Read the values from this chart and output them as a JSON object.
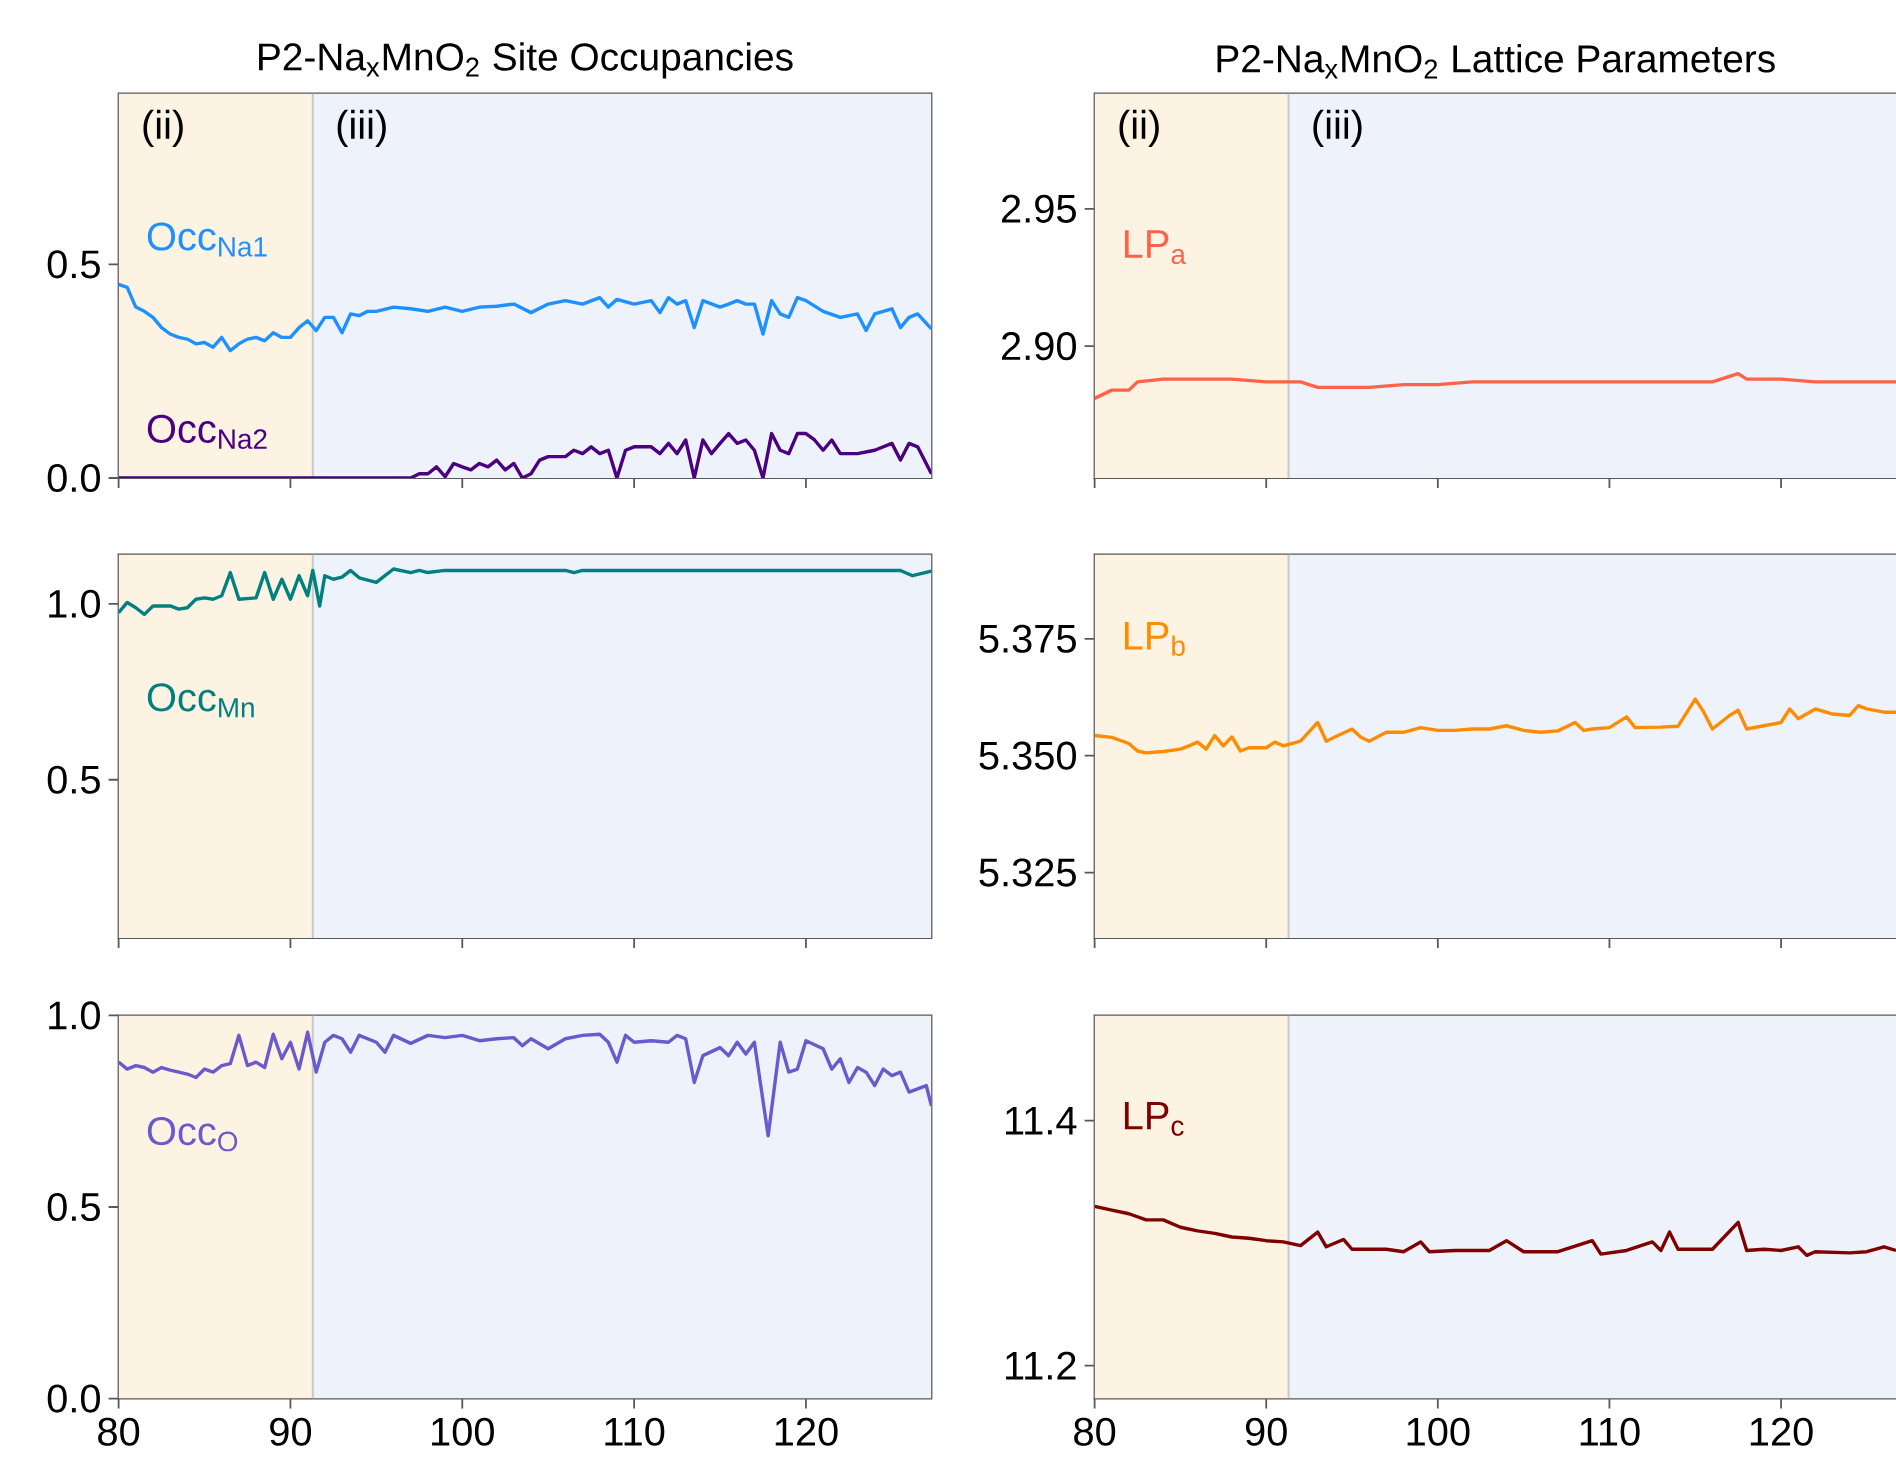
{
  "chart_data": [
    {
      "type": "line",
      "title": "P2-Na$_{x}$MnO$_{2}$ Site Occupancies",
      "xlim": [
        80,
        127.3
      ],
      "xticks": [
        80,
        90,
        100,
        110,
        120
      ],
      "ylim": [
        0,
        0.9
      ],
      "yticks": [
        {
          "value": 0,
          "label": "0.0"
        },
        0.5
      ],
      "tick_labels": "y",
      "bands": [
        {
          "axis": "x",
          "from": 80,
          "to": 91.3,
          "label": "(ii)",
          "color": "#fdf3e3"
        },
        {
          "axis": "x",
          "from": 91.3,
          "to": 127.3,
          "label": "(iii)",
          "color": "#eef3fb"
        }
      ],
      "ref_lines": [
        {
          "axis": "x",
          "value": 91.3,
          "color": "#c8c8c8"
        }
      ],
      "series": [
        {
          "name": "Occ$_{Na1}$",
          "color": "#1e90ff",
          "x": [
            80,
            80.5,
            81,
            81.5,
            82,
            82.5,
            83,
            83.5,
            84,
            84.5,
            85,
            85.5,
            86,
            86.5,
            87,
            87.5,
            88,
            88.5,
            89,
            89.5,
            90,
            90.5,
            91,
            91.5,
            92,
            92.5,
            93,
            93.5,
            94,
            94.5,
            95,
            96,
            97,
            98,
            99,
            100,
            101,
            102,
            103,
            104,
            105,
            106,
            107,
            108,
            108.5,
            109,
            110,
            111,
            111.5,
            112,
            112.5,
            113,
            113.5,
            114,
            115,
            115.5,
            116,
            116.5,
            117,
            117.5,
            118,
            118.5,
            119,
            119.5,
            120,
            121,
            122,
            123,
            123.5,
            124,
            125,
            125.5,
            126,
            126.5,
            127.3
          ],
          "values": [
            0.453,
            0.446,
            0.4,
            0.39,
            0.376,
            0.352,
            0.337,
            0.329,
            0.325,
            0.314,
            0.317,
            0.306,
            0.329,
            0.298,
            0.314,
            0.325,
            0.329,
            0.321,
            0.34,
            0.329,
            0.329,
            0.352,
            0.368,
            0.345,
            0.376,
            0.376,
            0.34,
            0.384,
            0.38,
            0.39,
            0.39,
            0.4,
            0.396,
            0.39,
            0.4,
            0.39,
            0.4,
            0.402,
            0.407,
            0.387,
            0.407,
            0.415,
            0.407,
            0.422,
            0.4,
            0.418,
            0.407,
            0.415,
            0.387,
            0.422,
            0.407,
            0.415,
            0.352,
            0.415,
            0.4,
            0.407,
            0.415,
            0.407,
            0.407,
            0.337,
            0.415,
            0.384,
            0.376,
            0.422,
            0.415,
            0.39,
            0.376,
            0.384,
            0.345,
            0.384,
            0.396,
            0.352,
            0.376,
            0.384,
            0.349
          ]
        },
        {
          "name": "Occ$_{Na2}$",
          "color": "#4b0082",
          "x": [
            80,
            97,
            97.5,
            98,
            98.5,
            99,
            99.5,
            100,
            100.5,
            101,
            101.5,
            102,
            102.5,
            103,
            103.5,
            104,
            104.5,
            105,
            106,
            106.5,
            107,
            107.5,
            108,
            108.5,
            109,
            109.5,
            110,
            111,
            111.5,
            112,
            112.5,
            113,
            113.5,
            114,
            114.5,
            115,
            115.5,
            116,
            116.5,
            117,
            117.5,
            118,
            118.5,
            119,
            119.5,
            120,
            120.5,
            121,
            121.5,
            122,
            123,
            124,
            125,
            125.5,
            126,
            126.5,
            127.3
          ],
          "values": [
            0,
            0,
            0.01,
            0.01,
            0.026,
            0.003,
            0.034,
            0.026,
            0.019,
            0.034,
            0.026,
            0.042,
            0.019,
            0.034,
            0,
            0.01,
            0.042,
            0.05,
            0.05,
            0.065,
            0.057,
            0.073,
            0.057,
            0.065,
            0,
            0.065,
            0.073,
            0.073,
            0.057,
            0.081,
            0.057,
            0.089,
            0,
            0.089,
            0.057,
            0.081,
            0.104,
            0.081,
            0.089,
            0.065,
            0,
            0.104,
            0.065,
            0.057,
            0.104,
            0.104,
            0.089,
            0.065,
            0.089,
            0.057,
            0.057,
            0.065,
            0.081,
            0.042,
            0.081,
            0.073,
            0.01
          ]
        }
      ]
    },
    {
      "type": "line",
      "title": "P2-Na$_{x}$MnO$_{2}$ Lattice Parameters",
      "xlim": [
        80,
        126.7
      ],
      "xticks": [
        80,
        90,
        100,
        110,
        120
      ],
      "ylim": [
        2.852,
        2.992
      ],
      "yticks": [
        {
          "value": 2.9,
          "label": "2.90"
        },
        2.95
      ],
      "tick_labels": "y",
      "bands": [
        {
          "axis": "x",
          "from": 80,
          "to": 91.3,
          "label": "(ii)",
          "color": "#fdf3e3"
        },
        {
          "axis": "x",
          "from": 91.3,
          "to": 126.7,
          "label": "(iii)",
          "color": "#eef3fb"
        }
      ],
      "ref_lines": [
        {
          "axis": "x",
          "value": 91.3,
          "color": "#c8c8c8"
        }
      ],
      "series": [
        {
          "name": "LP$_{a}$",
          "color": "#ff6347",
          "x": [
            80,
            81,
            82,
            82.5,
            84,
            86,
            87,
            88,
            90,
            91.3,
            92,
            93,
            94,
            96,
            98,
            100,
            102,
            104,
            106,
            108,
            110,
            112,
            114,
            116,
            117.5,
            118,
            120,
            122,
            124,
            126,
            126.7
          ],
          "values": [
            2.881,
            2.884,
            2.884,
            2.887,
            2.888,
            2.888,
            2.888,
            2.888,
            2.887,
            2.887,
            2.887,
            2.885,
            2.885,
            2.885,
            2.886,
            2.886,
            2.887,
            2.887,
            2.887,
            2.887,
            2.887,
            2.887,
            2.887,
            2.887,
            2.89,
            2.888,
            2.888,
            2.887,
            2.887,
            2.887,
            2.887
          ]
        }
      ]
    },
    {
      "type": "line",
      "xlim": [
        80,
        127.3
      ],
      "xticks": [
        80,
        90,
        100,
        110,
        120
      ],
      "ylim": [
        0.05,
        1.14
      ],
      "yticks": [
        0.5,
        {
          "value": 1,
          "label": "1.0"
        }
      ],
      "tick_labels": "y",
      "bands": [
        {
          "axis": "x",
          "from": 80,
          "to": 91.3,
          "color": "#fdf3e3"
        },
        {
          "axis": "x",
          "from": 91.3,
          "to": 127.3,
          "color": "#eef3fb"
        }
      ],
      "ref_lines": [
        {
          "axis": "x",
          "value": 91.3,
          "color": "#c8c8c8"
        }
      ],
      "series": [
        {
          "name": "Occ$_{Mn}$",
          "color": "#008080",
          "x": [
            80,
            80.5,
            81,
            81.5,
            82,
            83,
            83.5,
            84,
            84.5,
            85,
            85.5,
            86,
            86.5,
            87,
            88,
            88.5,
            89,
            89.5,
            90,
            90.5,
            91,
            91.3,
            91.7,
            92,
            92.5,
            93,
            93.5,
            94,
            95,
            95.5,
            96,
            97,
            97.5,
            98,
            99,
            106,
            106.5,
            107,
            125.5,
            126.2,
            127.3
          ],
          "values": [
            0.975,
            1.004,
            0.989,
            0.97,
            0.994,
            0.994,
            0.985,
            0.989,
            1.013,
            1.017,
            1.013,
            1.023,
            1.089,
            1.013,
            1.017,
            1.089,
            1.013,
            1.07,
            1.013,
            1.08,
            1.023,
            1.095,
            0.994,
            1.08,
            1.07,
            1.076,
            1.095,
            1.074,
            1.061,
            1.08,
            1.099,
            1.089,
            1.095,
            1.089,
            1.095,
            1.095,
            1.089,
            1.095,
            1.095,
            1.08,
            1.093
          ]
        }
      ]
    },
    {
      "type": "line",
      "xlim": [
        80,
        126.7
      ],
      "xticks": [
        80,
        90,
        100,
        110,
        120
      ],
      "ylim": [
        5.311,
        5.393
      ],
      "yticks": [
        5.325,
        {
          "value": 5.35,
          "label": "5.350"
        },
        5.375
      ],
      "tick_labels": "y",
      "bands": [
        {
          "axis": "x",
          "from": 80,
          "to": 91.3,
          "color": "#fdf3e3"
        },
        {
          "axis": "x",
          "from": 91.3,
          "to": 126.7,
          "color": "#eef3fb"
        }
      ],
      "ref_lines": [
        {
          "axis": "x",
          "value": 91.3,
          "color": "#c8c8c8"
        }
      ],
      "series": [
        {
          "name": "LP$_{b}$",
          "color": "#ff8c00",
          "x": [
            80,
            81,
            82,
            82.5,
            83,
            84,
            85,
            85.5,
            86,
            86.5,
            87,
            87.5,
            88,
            88.5,
            89,
            90,
            90.5,
            91,
            92,
            93,
            93.5,
            94,
            95,
            95.5,
            96,
            97,
            98,
            99,
            100,
            101,
            102,
            103,
            104,
            105,
            106,
            107,
            108,
            108.5,
            109,
            110,
            111,
            111.5,
            113,
            114,
            115,
            115.5,
            116,
            117,
            117.5,
            118,
            119,
            120,
            120.5,
            121,
            122,
            123,
            124,
            124.5,
            125,
            126,
            126.7
          ],
          "values": [
            5.3543,
            5.3539,
            5.3526,
            5.351,
            5.3506,
            5.3509,
            5.3514,
            5.3521,
            5.3529,
            5.3514,
            5.3543,
            5.3521,
            5.354,
            5.351,
            5.3517,
            5.3517,
            5.3529,
            5.3521,
            5.3531,
            5.3571,
            5.3531,
            5.354,
            5.3557,
            5.354,
            5.3531,
            5.355,
            5.355,
            5.356,
            5.3554,
            5.3554,
            5.3557,
            5.3557,
            5.3564,
            5.3554,
            5.355,
            5.3553,
            5.3571,
            5.3554,
            5.3557,
            5.356,
            5.3583,
            5.356,
            5.3561,
            5.3563,
            5.3621,
            5.3593,
            5.3557,
            5.3586,
            5.3597,
            5.3557,
            5.3564,
            5.3571,
            5.36,
            5.3579,
            5.36,
            5.3589,
            5.3586,
            5.3607,
            5.36,
            5.3593,
            5.3593
          ]
        }
      ]
    },
    {
      "type": "line",
      "xlim": [
        80,
        127.3
      ],
      "xticks": [
        80,
        90,
        100,
        110,
        120
      ],
      "ylim": [
        0,
        1
      ],
      "yticks": [
        {
          "value": 0,
          "label": "0.0"
        },
        0.5,
        {
          "value": 1,
          "label": "1.0"
        }
      ],
      "bands": [
        {
          "axis": "x",
          "from": 80,
          "to": 91.3,
          "color": "#fdf3e3"
        },
        {
          "axis": "x",
          "from": 91.3,
          "to": 127.3,
          "color": "#eef3fb"
        }
      ],
      "ref_lines": [
        {
          "axis": "x",
          "value": 91.3,
          "color": "#c8c8c8"
        }
      ],
      "series": [
        {
          "name": "Occ$_{O}$",
          "color": "#6a5acd",
          "x": [
            80,
            80.5,
            81,
            81.5,
            82,
            82.5,
            83,
            84,
            84.5,
            85,
            85.5,
            86,
            86.5,
            87,
            87.5,
            88,
            88.5,
            89,
            89.5,
            90,
            90.5,
            91,
            91.5,
            92,
            92.5,
            93,
            93.5,
            94,
            95,
            95.5,
            96,
            97,
            98,
            99,
            100,
            101,
            102,
            103,
            103.5,
            104,
            105,
            106,
            107,
            108,
            108.5,
            109,
            109.5,
            110,
            111,
            112,
            112.5,
            113,
            113.5,
            114,
            115,
            115.5,
            116,
            116.5,
            117,
            117.8,
            118.5,
            119,
            119.5,
            120,
            121,
            121.5,
            122,
            122.5,
            123,
            123.5,
            124,
            124.5,
            125,
            125.5,
            126,
            127,
            127.3
          ],
          "values": [
            0.878,
            0.86,
            0.869,
            0.864,
            0.852,
            0.864,
            0.857,
            0.847,
            0.838,
            0.86,
            0.852,
            0.869,
            0.874,
            0.948,
            0.869,
            0.878,
            0.864,
            0.951,
            0.887,
            0.93,
            0.86,
            0.956,
            0.852,
            0.93,
            0.948,
            0.939,
            0.904,
            0.948,
            0.93,
            0.904,
            0.948,
            0.927,
            0.948,
            0.942,
            0.948,
            0.934,
            0.939,
            0.942,
            0.921,
            0.939,
            0.913,
            0.939,
            0.948,
            0.951,
            0.93,
            0.878,
            0.948,
            0.93,
            0.934,
            0.93,
            0.948,
            0.939,
            0.825,
            0.895,
            0.916,
            0.895,
            0.93,
            0.899,
            0.93,
            0.686,
            0.93,
            0.852,
            0.86,
            0.934,
            0.913,
            0.86,
            0.887,
            0.825,
            0.864,
            0.852,
            0.817,
            0.86,
            0.843,
            0.852,
            0.8,
            0.817,
            0.764
          ]
        }
      ]
    },
    {
      "type": "line",
      "xlim": [
        80,
        126.7
      ],
      "xticks": [
        80,
        90,
        100,
        110,
        120
      ],
      "ylim": [
        11.173,
        11.486
      ],
      "yticks": [
        11.2,
        11.4
      ],
      "bands": [
        {
          "axis": "x",
          "from": 80,
          "to": 91.3,
          "color": "#fdf3e3"
        },
        {
          "axis": "x",
          "from": 91.3,
          "to": 126.7,
          "color": "#eef3fb"
        }
      ],
      "ref_lines": [
        {
          "axis": "x",
          "value": 91.3,
          "color": "#c8c8c8"
        }
      ],
      "series": [
        {
          "name": "LP$_{c}$",
          "color": "#800000",
          "x": [
            80,
            81,
            82,
            83,
            84,
            85,
            86,
            87,
            88,
            89,
            90,
            91,
            92,
            93,
            93.5,
            94.5,
            95,
            97,
            98,
            99,
            99.5,
            101,
            103,
            104,
            105,
            107,
            109,
            109.5,
            111,
            112.5,
            113,
            113.5,
            114,
            116,
            117.5,
            118,
            119,
            120,
            121,
            121.5,
            122,
            124,
            125,
            126,
            126.7
          ],
          "values": [
            11.33,
            11.327,
            11.324,
            11.319,
            11.319,
            11.313,
            11.31,
            11.308,
            11.305,
            11.304,
            11.302,
            11.301,
            11.298,
            11.309,
            11.297,
            11.303,
            11.295,
            11.295,
            11.293,
            11.301,
            11.293,
            11.294,
            11.294,
            11.302,
            11.293,
            11.293,
            11.302,
            11.291,
            11.294,
            11.301,
            11.294,
            11.309,
            11.295,
            11.295,
            11.317,
            11.294,
            11.295,
            11.294,
            11.297,
            11.29,
            11.293,
            11.292,
            11.293,
            11.297,
            11.294
          ]
        }
      ]
    }
  ]
}
